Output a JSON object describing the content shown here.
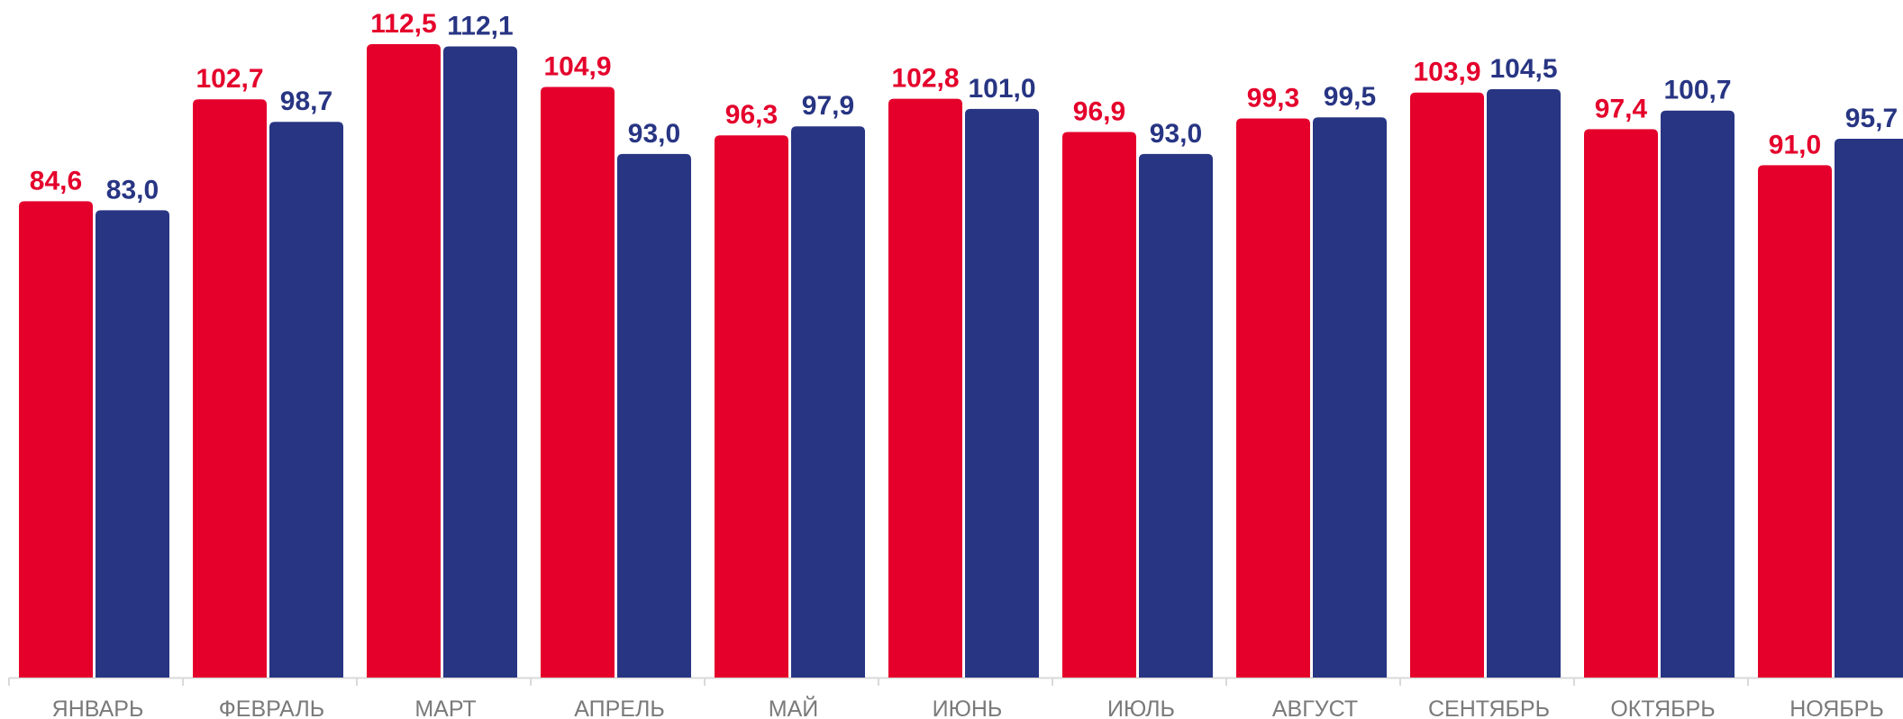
{
  "chart_data": {
    "type": "bar",
    "categories": [
      "ЯНВАРЬ",
      "ФЕВРАЛЬ",
      "МАРТ",
      "АПРЕЛЬ",
      "МАЙ",
      "ИЮНЬ",
      "ИЮЛЬ",
      "АВГУСТ",
      "СЕНТЯБРЬ",
      "ОКТЯБРЬ",
      "НОЯБРЬ"
    ],
    "series": [
      {
        "color": "#e4002b",
        "values": [
          84.6,
          102.7,
          112.5,
          104.9,
          96.3,
          102.8,
          96.9,
          99.3,
          103.9,
          97.4,
          91.0
        ],
        "labels": [
          "84,6",
          "102,7",
          "112,5",
          "104,9",
          "96,3",
          "102,8",
          "96,9",
          "99,3",
          "103,9",
          "97,4",
          "91,0"
        ]
      },
      {
        "color": "#283583",
        "values": [
          83.0,
          98.7,
          112.1,
          93.0,
          97.9,
          101.0,
          93.0,
          99.5,
          104.5,
          100.7,
          95.7
        ],
        "labels": [
          "83,0",
          "98,7",
          "112,1",
          "93,0",
          "97,9",
          "101,0",
          "93,0",
          "99,5",
          "104,5",
          "100,7",
          "95,7"
        ]
      }
    ],
    "title": "",
    "xlabel": "",
    "ylabel": "",
    "ylim": [
      0,
      112.5
    ],
    "grid": false,
    "legend": "none",
    "axis_line_color": "#d9d9d9"
  }
}
